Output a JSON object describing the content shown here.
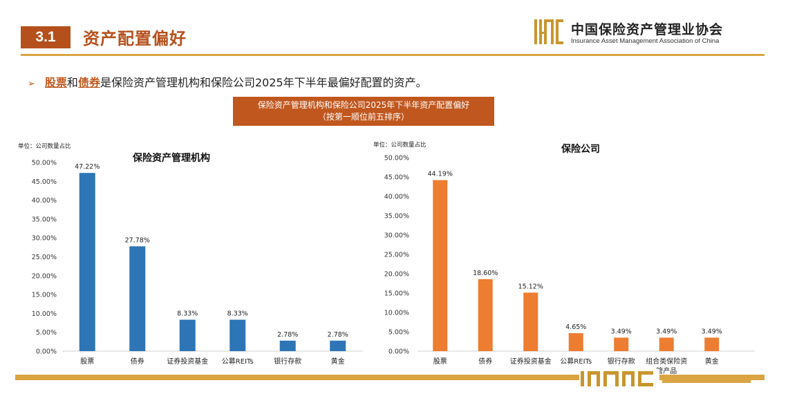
{
  "header": {
    "section_number": "3.1",
    "section_title": "资产配置偏好",
    "org_name_cn": "中国保险资产管理业协会",
    "org_name_en": "Insurance Asset Management Association of China",
    "logo_text": "IAMAC"
  },
  "bullet": {
    "marker": "➢",
    "highlight_1": "股票",
    "connector": "和",
    "highlight_2": "债券",
    "rest": "是保险资产管理机构和保险公司2025年下半年最偏好配置的资产。"
  },
  "banner": {
    "line1": "保险资产管理机构和保险公司2025年下半年资产配置偏好",
    "line2": "（按第一顺位前五排序）"
  },
  "colors": {
    "brand": "#b5501c",
    "gold": "#d9a441",
    "blue_bar": "#2e75b6",
    "orange_bar": "#ed7d31"
  },
  "chart_data": [
    {
      "type": "bar",
      "title": "保险资产管理机构",
      "unit_label": "单位：公司数量占比",
      "categories": [
        "股票",
        "债券",
        "证券投资基金",
        "公募REITs",
        "银行存款",
        "黄金"
      ],
      "values": [
        47.22,
        27.78,
        8.33,
        8.33,
        2.78,
        2.78
      ],
      "value_labels": [
        "47.22%",
        "27.78%",
        "8.33%",
        "8.33%",
        "2.78%",
        "2.78%"
      ],
      "ylim": [
        0,
        50
      ],
      "yticks": [
        "0.00%",
        "5.00%",
        "10.00%",
        "15.00%",
        "20.00%",
        "25.00%",
        "30.00%",
        "35.00%",
        "40.00%",
        "45.00%",
        "50.00%"
      ],
      "color": "#2e75b6",
      "grid": false
    },
    {
      "type": "bar",
      "title": "保险公司",
      "unit_label": "单位：公司数量占比",
      "categories": [
        "股票",
        "债券",
        "证券投资基金",
        "公募REITs",
        "银行存款",
        "组合类保险资管产品",
        "黄金"
      ],
      "category_lines": [
        [
          "股票"
        ],
        [
          "债券"
        ],
        [
          "证券投资基金"
        ],
        [
          "公募REITs"
        ],
        [
          "银行存款"
        ],
        [
          "组合类保险资",
          "管产品"
        ],
        [
          "黄金"
        ]
      ],
      "values": [
        44.19,
        18.6,
        15.12,
        4.65,
        3.49,
        3.49,
        3.49
      ],
      "value_labels": [
        "44.19%",
        "18.60%",
        "15.12%",
        "4.65%",
        "3.49%",
        "3.49%",
        "3.49%"
      ],
      "ylim": [
        0,
        50
      ],
      "yticks": [
        "0.00%",
        "5.00%",
        "10.00%",
        "15.00%",
        "20.00%",
        "25.00%",
        "30.00%",
        "35.00%",
        "40.00%",
        "45.00%",
        "50.00%"
      ],
      "color": "#ed7d31",
      "grid": false
    }
  ]
}
